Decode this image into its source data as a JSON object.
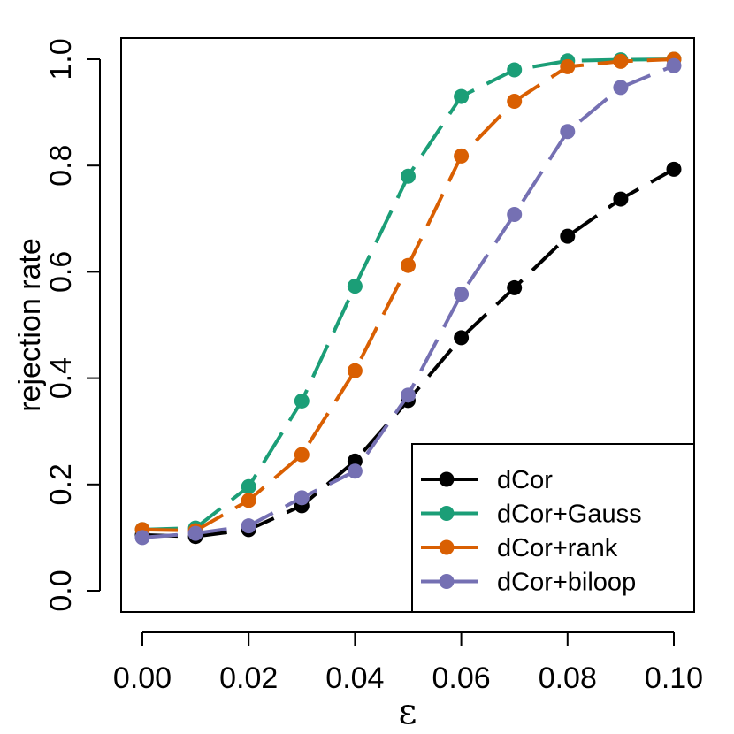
{
  "chart_data": {
    "type": "line",
    "title": "",
    "xlabel": "ε",
    "ylabel": "rejection rate",
    "xlim": [
      0.0,
      0.1
    ],
    "ylim": [
      0.0,
      1.0
    ],
    "x": [
      0.0,
      0.01,
      0.02,
      0.03,
      0.04,
      0.05,
      0.06,
      0.07,
      0.08,
      0.09,
      0.1
    ],
    "xticks": [
      0.0,
      0.02,
      0.04,
      0.06,
      0.08,
      0.1
    ],
    "xtick_labels": [
      "0.00",
      "0.02",
      "0.04",
      "0.06",
      "0.08",
      "0.10"
    ],
    "yticks": [
      0.0,
      0.2,
      0.4,
      0.6,
      0.8,
      1.0
    ],
    "ytick_labels": [
      "0.0",
      "0.2",
      "0.4",
      "0.6",
      "0.8",
      "1.0"
    ],
    "grid": false,
    "legend_position": "bottom-right",
    "series": [
      {
        "name": "dCor",
        "color": "#000000",
        "values": [
          0.105,
          0.102,
          0.115,
          0.16,
          0.244,
          0.358,
          0.476,
          0.57,
          0.667,
          0.737,
          0.793
        ]
      },
      {
        "name": "dCor+Gauss",
        "color": "#1b9e77",
        "values": [
          0.115,
          0.118,
          0.196,
          0.357,
          0.573,
          0.78,
          0.93,
          0.98,
          0.997,
          0.999,
          1.0
        ]
      },
      {
        "name": "dCor+rank",
        "color": "#d95f02",
        "values": [
          0.115,
          0.113,
          0.17,
          0.256,
          0.414,
          0.612,
          0.818,
          0.921,
          0.986,
          0.996,
          1.0
        ]
      },
      {
        "name": "dCor+biloop",
        "color": "#7570b3",
        "values": [
          0.1,
          0.108,
          0.122,
          0.175,
          0.225,
          0.368,
          0.558,
          0.708,
          0.864,
          0.947,
          0.988
        ]
      }
    ]
  }
}
